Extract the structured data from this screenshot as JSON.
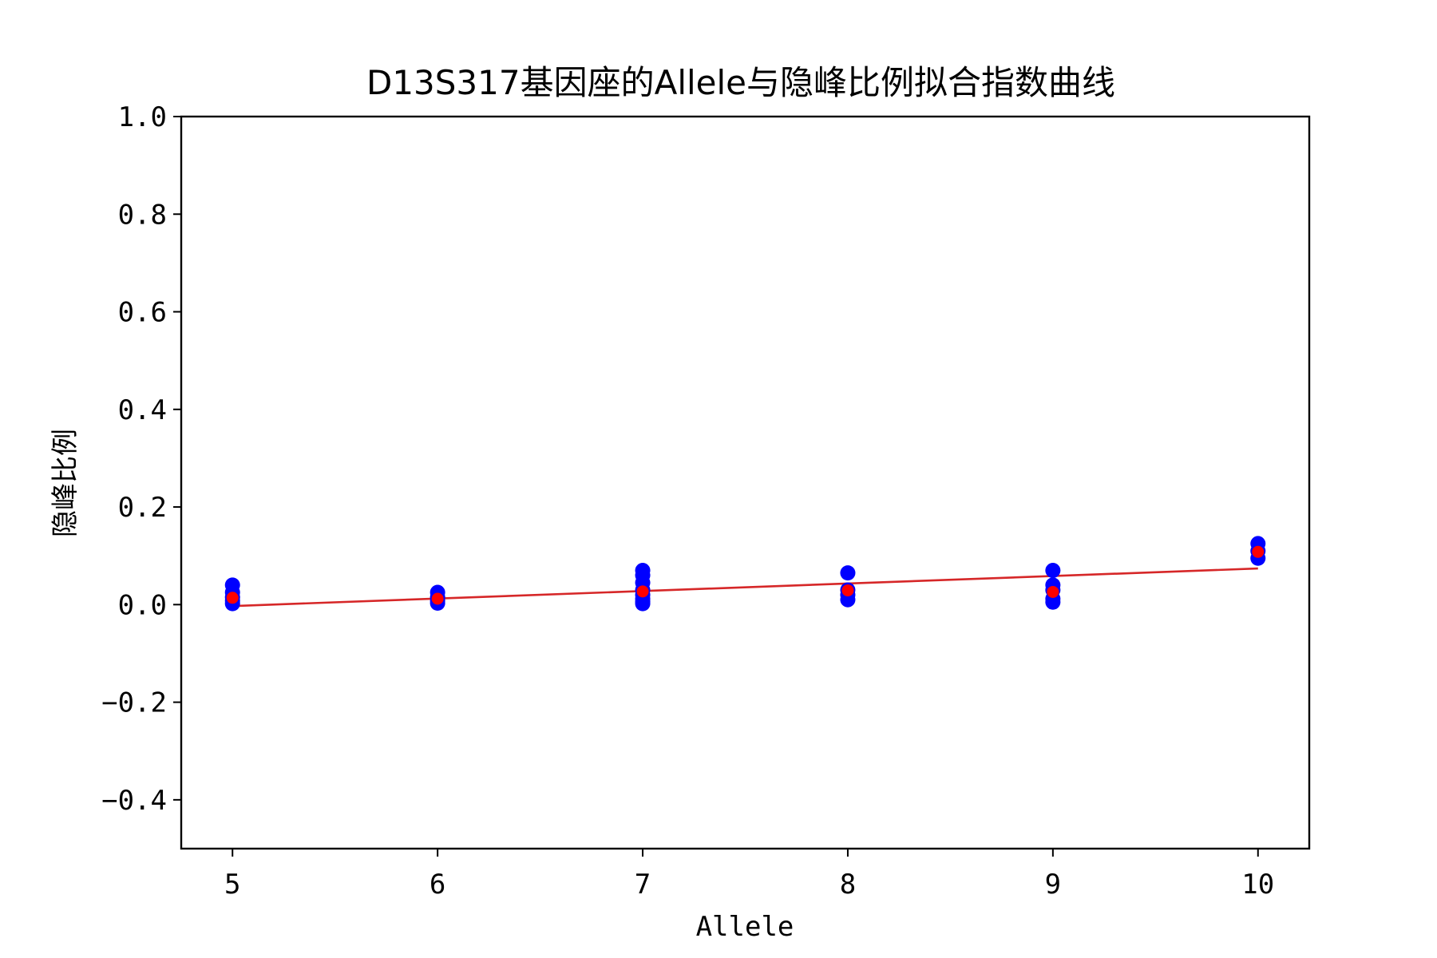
{
  "chart_data": {
    "type": "scatter",
    "title": "D13S317基因座的Allele与隐峰比例拟合指数曲线",
    "xlabel": "Allele",
    "ylabel": "隐峰比例",
    "xlim": [
      4.75,
      10.25
    ],
    "ylim": [
      -0.5,
      1.0
    ],
    "xticks": [
      5,
      6,
      7,
      8,
      9,
      10
    ],
    "yticks": [
      -0.4,
      -0.2,
      0.0,
      0.2,
      0.4,
      0.6,
      0.8,
      1.0
    ],
    "ytick_labels": [
      "−0.4",
      "−0.2",
      "0.0",
      "0.2",
      "0.4",
      "0.6",
      "0.8",
      "1.0"
    ],
    "grid": false,
    "colors": {
      "observed": "#0000ff",
      "mean": "#ff0000",
      "fit": "#d62728",
      "axis": "#000000"
    },
    "series": [
      {
        "role": "observed",
        "x": [
          5,
          5,
          5,
          5,
          5,
          6,
          6,
          6,
          6,
          7,
          7,
          7,
          7,
          7,
          7,
          7,
          7,
          8,
          8,
          8,
          8,
          9,
          9,
          9,
          9,
          9,
          10,
          10,
          10
        ],
        "y": [
          0.04,
          0.025,
          0.015,
          0.008,
          0.002,
          0.025,
          0.015,
          0.008,
          0.003,
          0.07,
          0.06,
          0.045,
          0.03,
          0.02,
          0.012,
          0.006,
          0.002,
          0.065,
          0.03,
          0.02,
          0.01,
          0.07,
          0.04,
          0.03,
          0.012,
          0.005,
          0.125,
          0.11,
          0.095
        ]
      },
      {
        "role": "mean",
        "x": [
          5,
          6,
          7,
          8,
          9,
          10
        ],
        "y": [
          0.014,
          0.012,
          0.027,
          0.029,
          0.026,
          0.108
        ]
      },
      {
        "role": "fit",
        "x": [
          5,
          10
        ],
        "y": [
          -0.003,
          0.074
        ]
      }
    ]
  }
}
